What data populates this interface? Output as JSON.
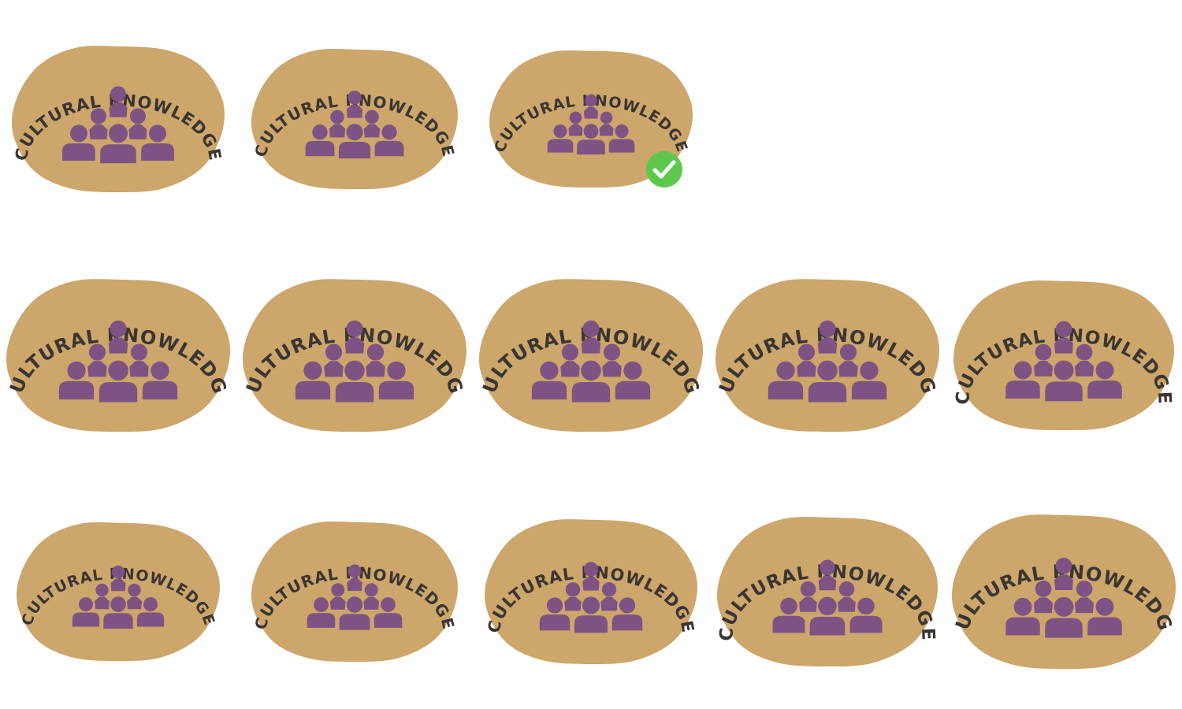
{
  "badge_label": "CULTURAL KNOWLEDGE",
  "colors": {
    "blob": "#cca66b",
    "people": "#7e5383",
    "text": "#3b3532",
    "check": "#5ec84e"
  },
  "icons": {
    "badge_icon": "people-pyramid-icon",
    "selected_icon": "check-circle-icon"
  },
  "variants": [
    {
      "id": 1,
      "label": "CULTURAL KNOWLEDGE",
      "selected": false
    },
    {
      "id": 2,
      "label": "CULTURAL KNOWLEDGE",
      "selected": false
    },
    {
      "id": 3,
      "label": "CULTURAL KNOWLEDGE",
      "selected": true
    },
    {
      "id": 4,
      "label": "CULTURAL KNOWLEDGE",
      "selected": false
    },
    {
      "id": 5,
      "label": "CULTURAL KNOWLEDGE",
      "selected": false
    },
    {
      "id": 6,
      "label": "CULTURAL KNOWLEDGE",
      "selected": false
    },
    {
      "id": 7,
      "label": "CULTURAL KNOWLEDGE",
      "selected": false
    },
    {
      "id": 8,
      "label": "CULTURAL KNOWLEDGE",
      "selected": false
    },
    {
      "id": 9,
      "label": "CULTURAL KNOWLEDGE",
      "selected": false
    },
    {
      "id": 10,
      "label": "CULTURAL KNOWLEDGE",
      "selected": false
    },
    {
      "id": 11,
      "label": "CULTURAL KNOWLEDGE",
      "selected": false
    },
    {
      "id": 12,
      "label": "CULTURAL KNOWLEDGE",
      "selected": false
    },
    {
      "id": 13,
      "label": "CULTURAL KNOWLEDGE",
      "selected": false
    }
  ]
}
